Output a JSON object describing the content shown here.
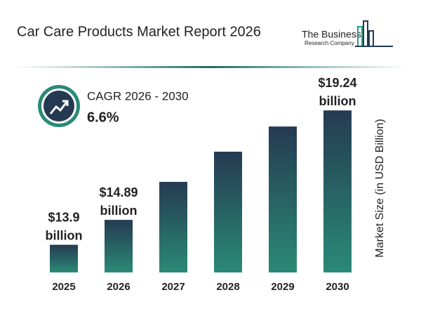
{
  "chart_data": {
    "type": "bar",
    "title": "Car Care Products Market Report 2026",
    "logo": {
      "line1": "The Business",
      "line2": "Research Company"
    },
    "cagr_label": "CAGR 2026 - 2030",
    "cagr_value": "6.6%",
    "y_axis_label": "Market Size (in USD Billion)",
    "categories": [
      "2025",
      "2026",
      "2027",
      "2028",
      "2029",
      "2030"
    ],
    "values": [
      13.9,
      14.89,
      16.4,
      17.6,
      18.6,
      19.24
    ],
    "value_labels": [
      "$13.9 billion",
      "$14.89 billion",
      null,
      null,
      null,
      "$19.24 billion"
    ],
    "color": [
      "#253a52",
      "#2a8a76"
    ],
    "ylim": [
      12.8,
      20
    ]
  }
}
